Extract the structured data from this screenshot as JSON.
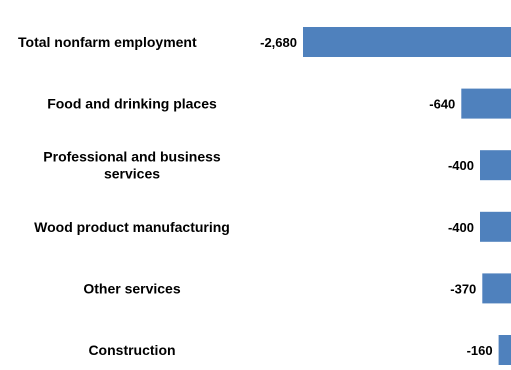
{
  "chart_data": {
    "type": "bar",
    "orientation": "horizontal",
    "categories": [
      "Total nonfarm employment",
      "Food and drinking places",
      "Professional and business services",
      "Wood product manufacturing",
      "Other services",
      "Construction"
    ],
    "category_lines": [
      [
        "Total nonfarm employment"
      ],
      [
        "Food and drinking places"
      ],
      [
        "Professional and business",
        "services"
      ],
      [
        "Wood product manufacturing"
      ],
      [
        "Other services"
      ],
      [
        "Construction"
      ]
    ],
    "values": [
      -2680,
      -640,
      -400,
      -400,
      -370,
      -160
    ],
    "value_labels": [
      "-2,680",
      "-640",
      "-400",
      "-400",
      "-370",
      "-160"
    ],
    "bar_color": "#4f81bd",
    "title": "",
    "xlabel": "",
    "ylabel": "",
    "grid": false,
    "legend": "none"
  }
}
